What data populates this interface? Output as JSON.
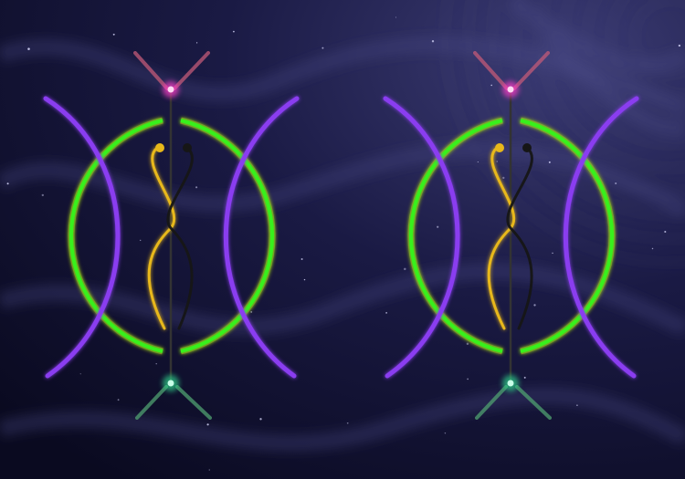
{
  "scene": {
    "background": {
      "base": "#0c0c24",
      "swirl": "#4a4a86",
      "stars": "#dcdcff"
    },
    "colors": {
      "violet": "#8a3df0",
      "green": "#39f01e",
      "gold": "#e8b81a",
      "dark": "#161616",
      "magenta": "#ff3cc8",
      "teal": "#2fd28a",
      "rose": "#c25a78",
      "mint": "#4fa070"
    },
    "symbols": [
      {
        "name": "left-sigil"
      },
      {
        "name": "right-sigil"
      }
    ]
  }
}
